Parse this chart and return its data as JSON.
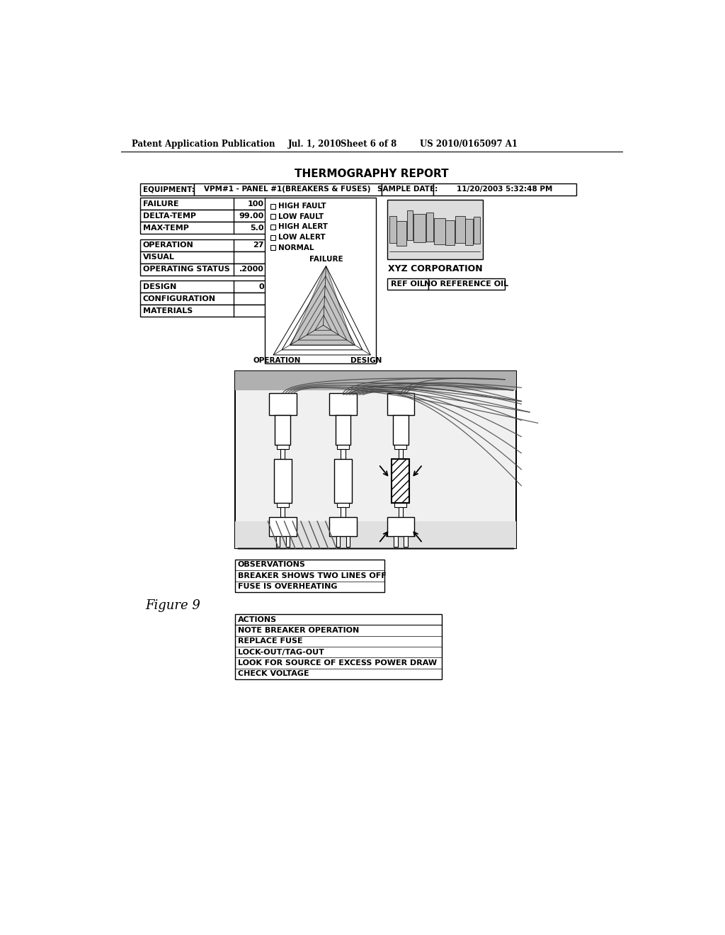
{
  "title": "THERMOGRAPHY REPORT",
  "header_label1": "EQUIPMENT:",
  "header_val1": "VPM#1 - PANEL #1(BREAKERS & FUSES)",
  "header_label2": "SAMPLE DATE:",
  "header_val2": "11/20/2003 5:32:48 PM",
  "left_table1": [
    [
      "FAILURE",
      "100"
    ],
    [
      "DELTA-TEMP",
      "99.00"
    ],
    [
      "MAX-TEMP",
      "5.0"
    ]
  ],
  "left_table2": [
    [
      "OPERATION",
      "27"
    ],
    [
      "VISUAL",
      ""
    ],
    [
      "OPERATING STATUS",
      ".2000"
    ]
  ],
  "left_table3": [
    [
      "DESIGN",
      "0"
    ],
    [
      "CONFIGURATION",
      ""
    ],
    [
      "MATERIALS",
      ""
    ]
  ],
  "legend_items": [
    "HIGH FAULT",
    "LOW FAULT",
    "HIGH ALERT",
    "LOW ALERT",
    "NORMAL"
  ],
  "radar_labels": [
    "FAILURE",
    "OPERATION",
    "DESIGN"
  ],
  "company_name": "XYZ CORPORATION",
  "ref_label": "REF OIL",
  "ref_val": "NO REFERENCE OIL",
  "observations_title": "OBSERVATIONS",
  "observations": [
    "BREAKER SHOWS TWO LINES OFF",
    "FUSE IS OVERHEATING"
  ],
  "actions_title": "ACTIONS",
  "actions": [
    "NOTE BREAKER OPERATION",
    "REPLACE FUSE",
    "LOCK-OUT/TAG-OUT",
    "LOOK FOR SOURCE OF EXCESS POWER DRAW",
    "CHECK VOLTAGE"
  ],
  "figure_label": "Figure 9",
  "patent_line": "Patent Application Publication",
  "patent_date": "Jul. 1, 2010",
  "patent_sheet": "Sheet 6 of 8",
  "patent_num": "US 2010/0165097 A1",
  "bg_color": "#ffffff"
}
